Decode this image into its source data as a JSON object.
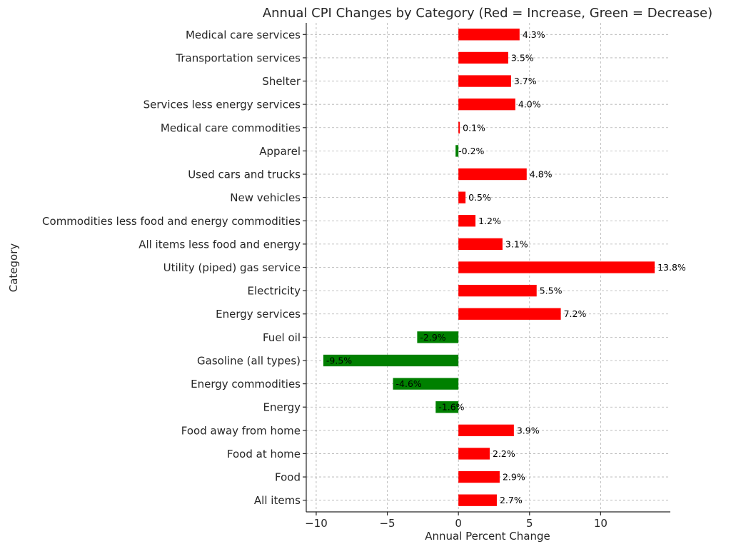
{
  "chart_data": {
    "type": "bar",
    "orientation": "horizontal",
    "title": "Annual CPI Changes by Category (Red = Increase, Green = Decrease)",
    "xlabel": "Annual Percent Change",
    "ylabel": "Category",
    "xlim": [
      -10.7,
      14.9
    ],
    "xticks": [
      -10,
      -5,
      0,
      5,
      10
    ],
    "xtick_labels": [
      "−10",
      "−5",
      "0",
      "5",
      "10"
    ],
    "grid": true,
    "colors": {
      "increase": "#ff0000",
      "decrease": "#008000"
    },
    "categories": [
      "Medical care services",
      "Transportation services",
      "Shelter",
      "Services less energy services",
      "Medical care commodities",
      "Apparel",
      "Used cars and trucks",
      "New vehicles",
      "Commodities less food and energy commodities",
      "All items less food and energy",
      "Utility (piped) gas service",
      "Electricity",
      "Energy services",
      "Fuel oil",
      "Gasoline (all types)",
      "Energy commodities",
      "Energy",
      "Food away from home",
      "Food at home",
      "Food",
      "All items"
    ],
    "values": [
      4.3,
      3.5,
      3.7,
      4.0,
      0.1,
      -0.2,
      4.8,
      0.5,
      1.2,
      3.1,
      13.8,
      5.5,
      7.2,
      -2.9,
      -9.5,
      -4.6,
      -1.6,
      3.9,
      2.2,
      2.9,
      2.7
    ],
    "data_labels": [
      "4.3%",
      "3.5%",
      "3.7%",
      "4.0%",
      "0.1%",
      "-0.2%",
      "4.8%",
      "0.5%",
      "1.2%",
      "3.1%",
      "13.8%",
      "5.5%",
      "7.2%",
      "-2.9%",
      "-9.5%",
      "-4.6%",
      "-1.6%",
      "3.9%",
      "2.2%",
      "2.9%",
      "2.7%"
    ]
  }
}
